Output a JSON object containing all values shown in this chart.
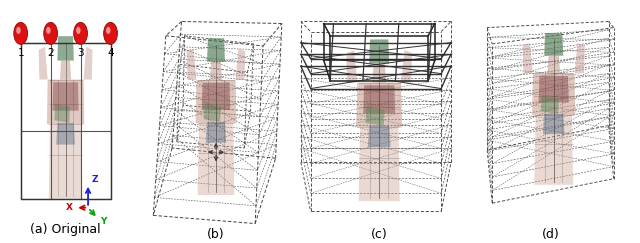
{
  "fig_width": 6.4,
  "fig_height": 2.43,
  "dpi": 100,
  "background": "#ffffff",
  "panels": [
    "(a) Original",
    "(b)",
    "(c)",
    "(d)"
  ],
  "panel_label_fontsize": 9,
  "camera_labels": [
    "1",
    "2",
    "3",
    "4"
  ],
  "camera_color": "#dd1111",
  "axis_colors": {
    "X": "#cc0000",
    "Y": "#00aa00",
    "Z": "#2222cc"
  },
  "wireframe_color": "#444444",
  "body_skin_color": "#c8a090",
  "body_organ_green": "#4a7a50",
  "body_organ_red": "#8b3a3a",
  "body_organ_blue": "#3a5a8b",
  "body_alpha": 0.45
}
